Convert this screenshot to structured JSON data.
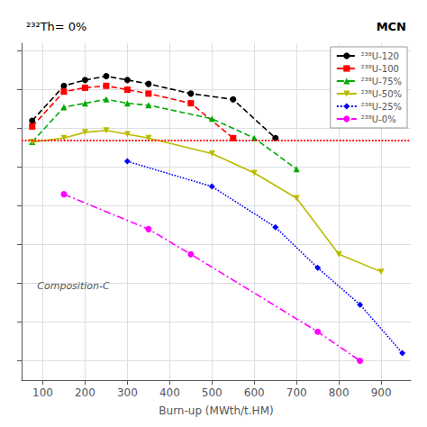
{
  "chart_data": {
    "type": "line",
    "title": "²³²Th= 0%",
    "subtitle": "MCN",
    "xlabel": "Burn-up (MWth/t.HM)",
    "annotation": "Composition-C",
    "xlim": [
      50,
      970
    ],
    "xticks": [
      100,
      200,
      300,
      400,
      500,
      600,
      700,
      800,
      900
    ],
    "ylim": [
      0.45,
      1.32
    ],
    "yticks": [
      0.5,
      0.6,
      0.7,
      0.8,
      0.9,
      1.0,
      1.1,
      1.2,
      1.3
    ],
    "tick_labels": "x",
    "grid": true,
    "legend": "upper right",
    "hline": {
      "value": 1.075,
      "color": "#ff0000",
      "line_style": "dotted"
    },
    "series": [
      {
        "name": "²³⁸U-120",
        "color": "#000000",
        "line_style": "dashed",
        "marker": "circle",
        "x": [
          75,
          150,
          200,
          250,
          300,
          350,
          450,
          550,
          650
        ],
        "values": [
          1.12,
          1.21,
          1.225,
          1.235,
          1.225,
          1.215,
          1.19,
          1.175,
          1.075
        ]
      },
      {
        "name": "²³⁸U-100",
        "color": "#ff0000",
        "line_style": "dashed",
        "marker": "square",
        "x": [
          75,
          150,
          200,
          250,
          300,
          350,
          450,
          550,
          750,
          850
        ],
        "values": [
          1.105,
          1.195,
          1.205,
          1.21,
          1.2,
          1.19,
          1.165,
          1.075,
          null,
          null
        ]
      },
      {
        "name": "²³⁸U-75%",
        "color": "#00aa00",
        "line_style": "dashed",
        "marker": "triangle-up",
        "x": [
          75,
          150,
          200,
          250,
          300,
          350,
          500,
          600,
          700,
          800
        ],
        "values": [
          1.065,
          1.155,
          1.165,
          1.175,
          1.165,
          1.16,
          1.125,
          1.075,
          0.995,
          null
        ]
      },
      {
        "name": "²³⁸U-50%",
        "color": "#bbbb00",
        "line_style": "solid",
        "marker": "triangle-down",
        "x": [
          75,
          150,
          200,
          250,
          300,
          350,
          500,
          600,
          700,
          800,
          900
        ],
        "values": [
          1.065,
          1.075,
          1.09,
          1.095,
          1.085,
          1.075,
          1.035,
          0.985,
          0.92,
          0.775,
          0.73
        ]
      },
      {
        "name": "²³⁸U-25%",
        "color": "#0000ff",
        "line_style": "dotted",
        "marker": "diamond",
        "x": [
          300,
          500,
          650,
          750,
          850,
          950
        ],
        "values": [
          1.015,
          0.95,
          0.845,
          0.74,
          0.645,
          0.52
        ]
      },
      {
        "name": "²³⁸U-0%",
        "color": "#ff00ff",
        "line_style": "dashdot",
        "marker": "circle",
        "x": [
          150,
          350,
          450,
          750,
          850
        ],
        "values": [
          0.93,
          0.84,
          0.775,
          0.575,
          0.5
        ]
      }
    ]
  }
}
